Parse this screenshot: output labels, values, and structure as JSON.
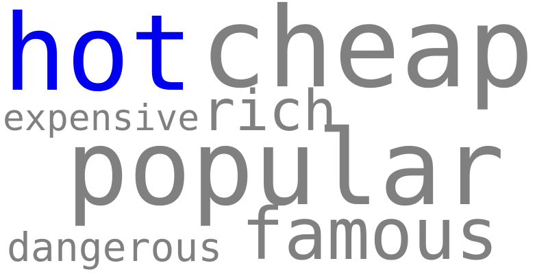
{
  "colors": {
    "background": "#ffffff",
    "highlight": "#0000ee",
    "default": "#808080"
  },
  "words": [
    {
      "key": "hot",
      "text": "hot",
      "color": "#0000ee"
    },
    {
      "key": "cheap",
      "text": "cheap",
      "color": "#808080"
    },
    {
      "key": "expensive",
      "text": "expensive",
      "color": "#808080"
    },
    {
      "key": "rich",
      "text": "rich",
      "color": "#808080"
    },
    {
      "key": "popular",
      "text": "popular",
      "color": "#808080"
    },
    {
      "key": "famous",
      "text": "famous",
      "color": "#808080"
    },
    {
      "key": "dangerous",
      "text": "dangerous",
      "color": "#808080"
    }
  ]
}
